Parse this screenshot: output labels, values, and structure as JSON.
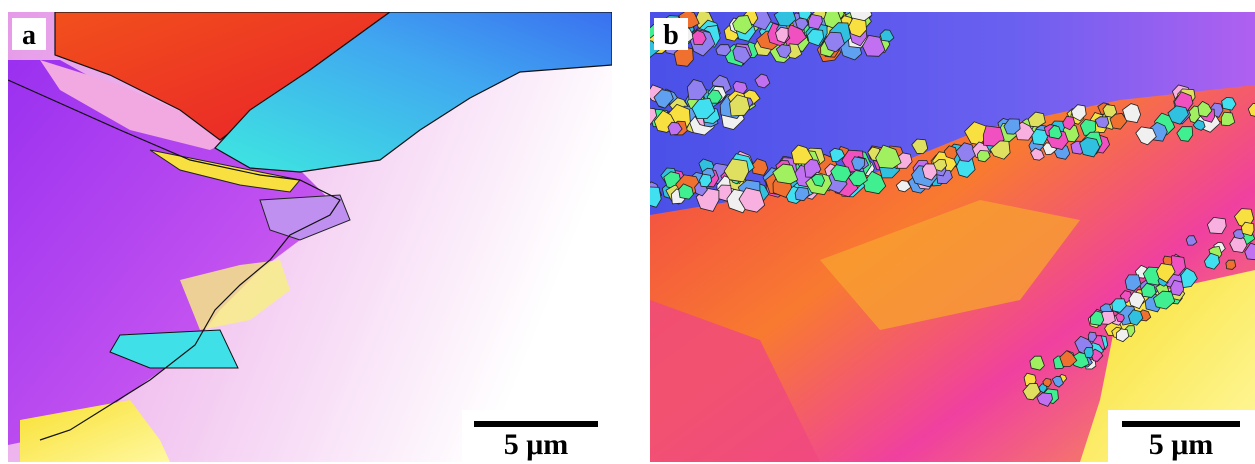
{
  "panels": [
    {
      "label": "a",
      "scale_bar": "5 μm"
    },
    {
      "label": "b",
      "scale_bar": "5 μm"
    }
  ]
}
